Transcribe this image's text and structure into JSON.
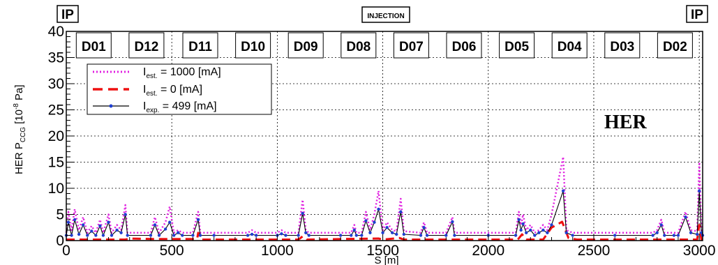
{
  "chart_data": {
    "type": "line",
    "ylabel_main": "HER P",
    "ylabel_sub": "CCG",
    "ylabel_unit": "[10",
    "ylabel_exp": "-8",
    "ylabel_end": " Pa]",
    "xlabel": "S [m]",
    "xlim": [
      0,
      3016
    ],
    "ylim": [
      0,
      40
    ],
    "x_ticks": [
      0,
      500,
      1000,
      1500,
      2000,
      2500,
      3000
    ],
    "y_ticks": [
      0,
      5,
      10,
      15,
      20,
      25,
      30,
      35,
      40
    ],
    "grid": true,
    "annotation": "HER",
    "top_labels": {
      "left": "IP",
      "center": "INJECTION",
      "right": "IP"
    },
    "sectors": [
      {
        "label": "D01",
        "x": 130
      },
      {
        "label": "D12",
        "x": 380
      },
      {
        "label": "D11",
        "x": 635
      },
      {
        "label": "D10",
        "x": 885
      },
      {
        "label": "D09",
        "x": 1135
      },
      {
        "label": "D08",
        "x": 1385
      },
      {
        "label": "D07",
        "x": 1635
      },
      {
        "label": "D06",
        "x": 1885
      },
      {
        "label": "D05",
        "x": 2135
      },
      {
        "label": "D04",
        "x": 2385
      },
      {
        "label": "D03",
        "x": 2635
      },
      {
        "label": "D02",
        "x": 2885
      }
    ],
    "legend": {
      "position": "top-left",
      "entries": [
        {
          "main": "I",
          "sub": "est.",
          "text": " = 1000 [mA]",
          "color": "#e020e0",
          "style": "dotted"
        },
        {
          "main": "I",
          "sub": "est.",
          "text": " = 0 [mA]",
          "color": "#ee1111",
          "style": "dashed"
        },
        {
          "main": "I",
          "sub": "exp.",
          "text": " = 499 [mA]",
          "color": "#000000",
          "style": "solid-marker"
        }
      ]
    },
    "series": [
      {
        "name": "I_exp. = 499 [mA]",
        "color": "#000000",
        "marker_color": "#1f3fd0",
        "points": [
          [
            0,
            1
          ],
          [
            10,
            3.5
          ],
          [
            25,
            1
          ],
          [
            40,
            4
          ],
          [
            60,
            1.2
          ],
          [
            80,
            3
          ],
          [
            100,
            1
          ],
          [
            120,
            1.8
          ],
          [
            140,
            1
          ],
          [
            160,
            2.8
          ],
          [
            175,
            1
          ],
          [
            200,
            3.5
          ],
          [
            215,
            1
          ],
          [
            240,
            2
          ],
          [
            260,
            1.5
          ],
          [
            280,
            5
          ],
          [
            290,
            1
          ],
          [
            400,
            1
          ],
          [
            420,
            3
          ],
          [
            440,
            1
          ],
          [
            470,
            2.2
          ],
          [
            490,
            3.5
          ],
          [
            510,
            1
          ],
          [
            530,
            1.5
          ],
          [
            550,
            1
          ],
          [
            600,
            1
          ],
          [
            625,
            4
          ],
          [
            635,
            1
          ],
          [
            700,
            1
          ],
          [
            860,
            1
          ],
          [
            880,
            1.2
          ],
          [
            900,
            1
          ],
          [
            1000,
            1
          ],
          [
            1020,
            1.3
          ],
          [
            1040,
            1
          ],
          [
            1100,
            1
          ],
          [
            1120,
            5.2
          ],
          [
            1135,
            1.5
          ],
          [
            1150,
            1
          ],
          [
            1300,
            1
          ],
          [
            1350,
            1
          ],
          [
            1365,
            2
          ],
          [
            1375,
            1
          ],
          [
            1400,
            1
          ],
          [
            1420,
            3.8
          ],
          [
            1440,
            1.5
          ],
          [
            1460,
            3.5
          ],
          [
            1480,
            6
          ],
          [
            1500,
            1.5
          ],
          [
            1520,
            2.5
          ],
          [
            1545,
            1.5
          ],
          [
            1565,
            1.2
          ],
          [
            1585,
            5.5
          ],
          [
            1600,
            1.2
          ],
          [
            1680,
            1
          ],
          [
            1695,
            2.5
          ],
          [
            1710,
            1
          ],
          [
            1800,
            1
          ],
          [
            1830,
            3.6
          ],
          [
            1840,
            1
          ],
          [
            2000,
            1
          ],
          [
            2130,
            1
          ],
          [
            2145,
            4
          ],
          [
            2155,
            2
          ],
          [
            2165,
            3.2
          ],
          [
            2180,
            1.5
          ],
          [
            2200,
            2
          ],
          [
            2220,
            1
          ],
          [
            2240,
            1.5
          ],
          [
            2260,
            2
          ],
          [
            2280,
            1.5
          ],
          [
            2300,
            3
          ],
          [
            2355,
            9.5
          ],
          [
            2370,
            1.5
          ],
          [
            2400,
            1
          ],
          [
            2600,
            1
          ],
          [
            2780,
            1
          ],
          [
            2800,
            1.5
          ],
          [
            2820,
            3
          ],
          [
            2835,
            1
          ],
          [
            2880,
            1
          ],
          [
            2900,
            1
          ],
          [
            2935,
            4.5
          ],
          [
            2960,
            1.5
          ],
          [
            2990,
            1.2
          ],
          [
            3000,
            9.5
          ],
          [
            3010,
            1.5
          ],
          [
            3016,
            1
          ]
        ]
      },
      {
        "name": "I_est. = 1000 [mA]",
        "color": "#e020e0",
        "points": [
          [
            0,
            1.5
          ],
          [
            10,
            5.5
          ],
          [
            25,
            2
          ],
          [
            40,
            6
          ],
          [
            60,
            2
          ],
          [
            80,
            4.5
          ],
          [
            100,
            1.5
          ],
          [
            120,
            2.8
          ],
          [
            140,
            1.5
          ],
          [
            160,
            4
          ],
          [
            175,
            1.5
          ],
          [
            200,
            5
          ],
          [
            215,
            1.5
          ],
          [
            240,
            3
          ],
          [
            260,
            2
          ],
          [
            280,
            6.8
          ],
          [
            290,
            1.5
          ],
          [
            400,
            1.5
          ],
          [
            420,
            4.5
          ],
          [
            440,
            1.5
          ],
          [
            470,
            3.5
          ],
          [
            490,
            6.5
          ],
          [
            510,
            1.5
          ],
          [
            530,
            2
          ],
          [
            550,
            1.5
          ],
          [
            600,
            1.5
          ],
          [
            625,
            5.5
          ],
          [
            635,
            1.5
          ],
          [
            700,
            1.5
          ],
          [
            860,
            1.5
          ],
          [
            880,
            2
          ],
          [
            900,
            1.5
          ],
          [
            1000,
            1.5
          ],
          [
            1020,
            2
          ],
          [
            1040,
            1.5
          ],
          [
            1100,
            1.5
          ],
          [
            1120,
            7.8
          ],
          [
            1135,
            2
          ],
          [
            1150,
            1.5
          ],
          [
            1300,
            1.5
          ],
          [
            1350,
            1.5
          ],
          [
            1365,
            3
          ],
          [
            1375,
            1.5
          ],
          [
            1400,
            1.5
          ],
          [
            1420,
            5.5
          ],
          [
            1440,
            2
          ],
          [
            1460,
            5
          ],
          [
            1480,
            9.5
          ],
          [
            1500,
            2
          ],
          [
            1520,
            3.5
          ],
          [
            1545,
            2
          ],
          [
            1565,
            1.8
          ],
          [
            1585,
            8
          ],
          [
            1600,
            1.8
          ],
          [
            1680,
            1.5
          ],
          [
            1695,
            3.5
          ],
          [
            1710,
            1.5
          ],
          [
            1800,
            1.5
          ],
          [
            1830,
            4.5
          ],
          [
            1840,
            1.5
          ],
          [
            2000,
            1.5
          ],
          [
            2130,
            1.5
          ],
          [
            2145,
            5.5
          ],
          [
            2155,
            3
          ],
          [
            2165,
            5
          ],
          [
            2180,
            2
          ],
          [
            2200,
            3
          ],
          [
            2220,
            1.5
          ],
          [
            2240,
            2
          ],
          [
            2260,
            3
          ],
          [
            2280,
            2
          ],
          [
            2300,
            5
          ],
          [
            2355,
            16
          ],
          [
            2370,
            2
          ],
          [
            2400,
            1.5
          ],
          [
            2600,
            1.5
          ],
          [
            2780,
            1.5
          ],
          [
            2800,
            2
          ],
          [
            2820,
            4
          ],
          [
            2835,
            1.5
          ],
          [
            2880,
            1.5
          ],
          [
            2900,
            1.5
          ],
          [
            2935,
            5.5
          ],
          [
            2960,
            2
          ],
          [
            2990,
            1.8
          ],
          [
            3000,
            15
          ],
          [
            3010,
            2
          ],
          [
            3016,
            1.5
          ]
        ]
      },
      {
        "name": "I_est. = 0 [mA]",
        "color": "#ee1111",
        "points": [
          [
            0,
            0.2
          ],
          [
            280,
            0.2
          ],
          [
            300,
            0.4
          ],
          [
            420,
            0.3
          ],
          [
            620,
            0.3
          ],
          [
            625,
            1.5
          ],
          [
            640,
            0.2
          ],
          [
            1100,
            0.2
          ],
          [
            1120,
            0.8
          ],
          [
            1140,
            0.2
          ],
          [
            1480,
            0.4
          ],
          [
            1500,
            0.2
          ],
          [
            1580,
            0.5
          ],
          [
            1600,
            0.2
          ],
          [
            2140,
            0.2
          ],
          [
            2160,
            1.2
          ],
          [
            2180,
            0.2
          ],
          [
            2260,
            0.2
          ],
          [
            2300,
            2.5
          ],
          [
            2350,
            3.6
          ],
          [
            2380,
            0.5
          ],
          [
            2420,
            0.2
          ],
          [
            2990,
            0.2
          ],
          [
            3000,
            3
          ],
          [
            3010,
            0.2
          ],
          [
            3016,
            0.2
          ]
        ]
      }
    ]
  }
}
